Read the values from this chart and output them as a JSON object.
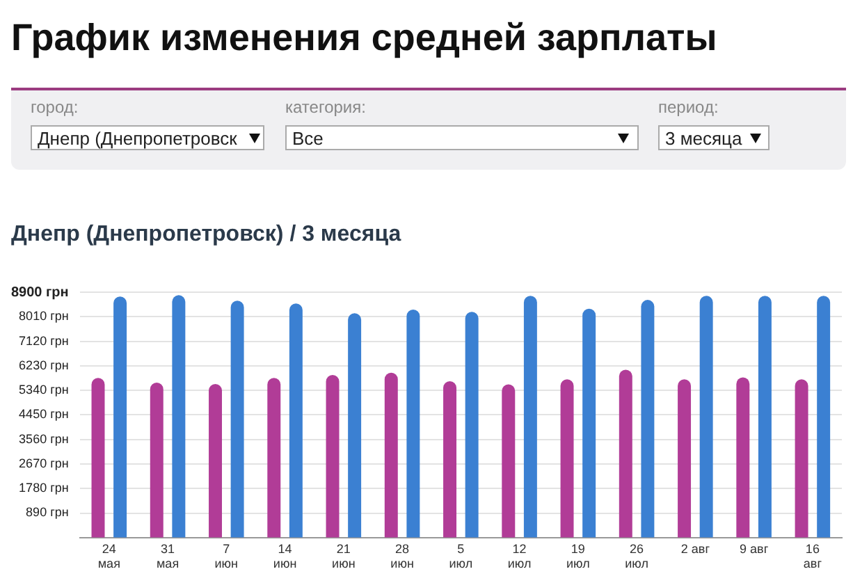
{
  "chart_data": {
    "type": "bar",
    "title": "График изменения средней зарплаты",
    "subtitle": "Днепр (Днепропетровск) / 3 месяца",
    "annotations": [
      "город:",
      "Днепр (Днепропетровск",
      "категория:",
      "Все",
      "период:",
      "3 месяца"
    ],
    "categories": [
      "24\nмая",
      "31\nмая",
      "7\nиюн",
      "14\nиюн",
      "21\nиюн",
      "28\nиюн",
      "5\nиюл",
      "12\nиюл",
      "19\nиюл",
      "26\nиюл",
      "2 авг",
      "9 авг",
      "16\nавг"
    ],
    "series": [
      {
        "color": "#b13c97",
        "values": [
          5790,
          5620,
          5570,
          5790,
          5900,
          5980,
          5670,
          5560,
          5740,
          6090,
          5740,
          5810,
          5740
        ]
      },
      {
        "color": "#3b80d2",
        "values": [
          8740,
          8790,
          8590,
          8490,
          8140,
          8270,
          8190,
          8770,
          8300,
          8620,
          8770,
          8770,
          8770
        ]
      }
    ],
    "ylim": [
      0,
      8900
    ],
    "yticks": [
      {
        "value": 890,
        "label": "890 грн"
      },
      {
        "value": 1780,
        "label": "1780 грн"
      },
      {
        "value": 2670,
        "label": "2670 грн"
      },
      {
        "value": 3560,
        "label": "3560 грн"
      },
      {
        "value": 4450,
        "label": "4450 грн"
      },
      {
        "value": 5340,
        "label": "5340 грн"
      },
      {
        "value": 6230,
        "label": "6230 грн"
      },
      {
        "value": 7120,
        "label": "7120 грн"
      },
      {
        "value": 8010,
        "label": "8010 грн"
      },
      {
        "value": 8900,
        "label": "8900 грн"
      }
    ],
    "grid": "y",
    "legend": false
  }
}
